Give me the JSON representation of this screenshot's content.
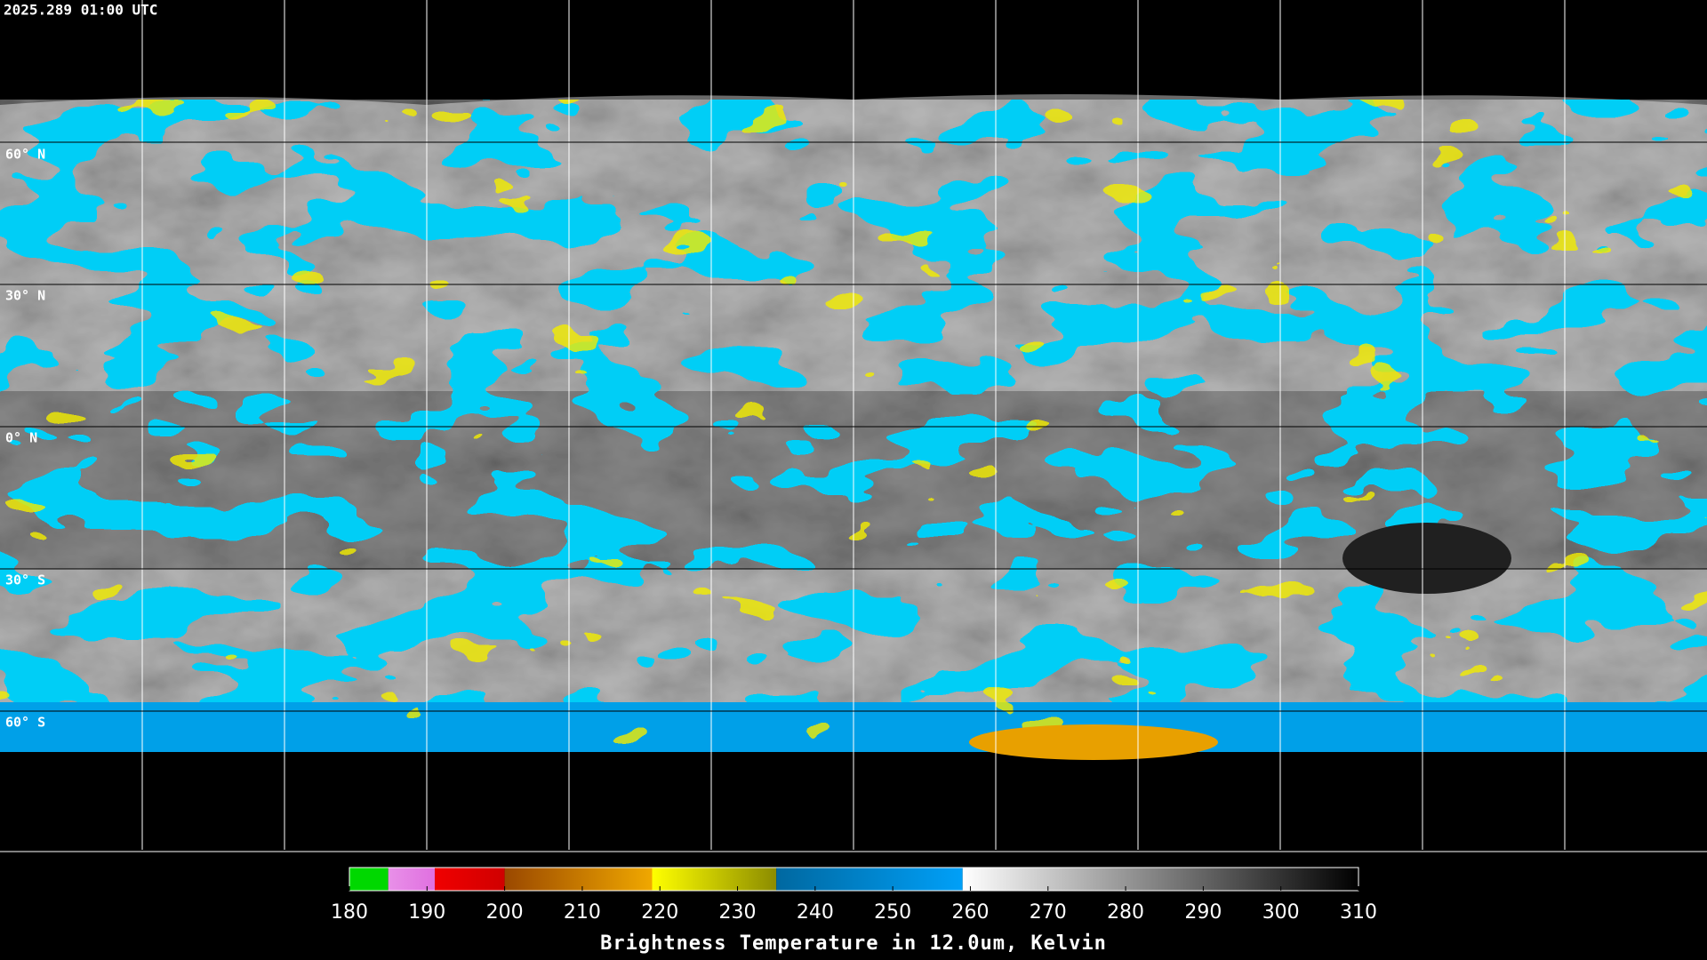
{
  "header": {
    "timestamp": "2025.289 01:00 UTC"
  },
  "map": {
    "latitude_labels": [
      "60° N",
      "30° N",
      "0° N",
      "30° S",
      "60° S"
    ]
  },
  "colorbar": {
    "title": "Brightness Temperature in 12.0um, Kelvin",
    "range": [
      180,
      310
    ],
    "ticks": [
      180,
      190,
      200,
      210,
      220,
      230,
      240,
      250,
      260,
      270,
      280,
      290,
      300,
      310
    ],
    "segments": [
      {
        "from": 180,
        "to": 185,
        "colors": [
          "#00d800",
          "#00d800"
        ]
      },
      {
        "from": 185,
        "to": 191,
        "colors": [
          "#e890e8",
          "#e070e0"
        ]
      },
      {
        "from": 191,
        "to": 200,
        "colors": [
          "#f00000",
          "#d00000"
        ]
      },
      {
        "from": 200,
        "to": 219,
        "colors": [
          "#9a4800",
          "#f0a800"
        ]
      },
      {
        "from": 219,
        "to": 235,
        "colors": [
          "#ffff00",
          "#8c8c00"
        ]
      },
      {
        "from": 235,
        "to": 259,
        "colors": [
          "#0068a0",
          "#00a0f8"
        ]
      },
      {
        "from": 259,
        "to": 310,
        "colors": [
          "#ffffff",
          "#000000"
        ]
      }
    ]
  }
}
